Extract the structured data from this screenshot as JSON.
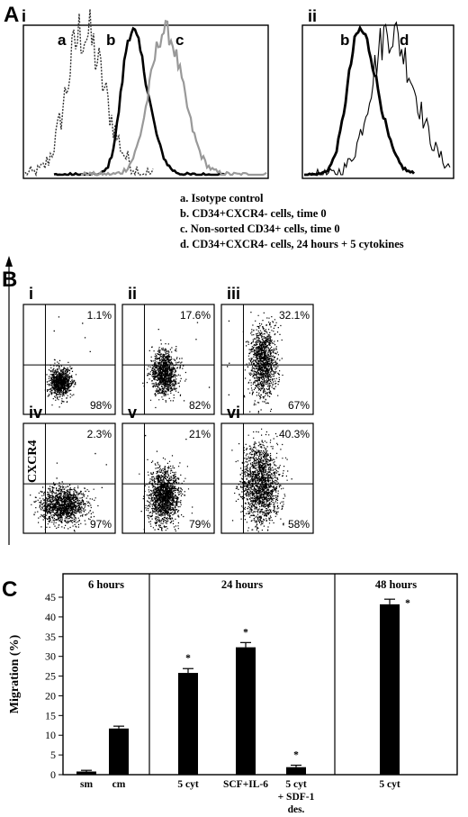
{
  "chart_data": [
    {
      "type": "histogram",
      "panel": "A",
      "subpanel": "i",
      "series": [
        {
          "name": "a",
          "style": "dotted",
          "color": "#333333"
        },
        {
          "name": "b",
          "style": "solid",
          "color": "#000000"
        },
        {
          "name": "c",
          "style": "solid",
          "color": "#999999"
        }
      ]
    },
    {
      "type": "histogram",
      "panel": "A",
      "subpanel": "ii",
      "series": [
        {
          "name": "b",
          "style": "solid-thick",
          "color": "#000000"
        },
        {
          "name": "d",
          "style": "solid-thin",
          "color": "#000000"
        }
      ]
    },
    {
      "type": "legend",
      "entries": [
        "a. Isotype control",
        "b. CD34+CXCR4- cells, time 0",
        "c. Non-sorted CD34+ cells, time 0",
        "d. CD34+CXCR4- cells, 24 hours + 5 cytokines"
      ]
    },
    {
      "type": "scatter",
      "panel": "B",
      "ylabel": "CXCR4",
      "plots": [
        {
          "label": "i",
          "upper": "1.1%",
          "lower": "98%"
        },
        {
          "label": "ii",
          "upper": "17.6%",
          "lower": "82%"
        },
        {
          "label": "iii",
          "upper": "32.1%",
          "lower": "67%"
        },
        {
          "label": "iv",
          "upper": "2.3%",
          "lower": "97%"
        },
        {
          "label": "v",
          "upper": "21%",
          "lower": "79%"
        },
        {
          "label": "vi",
          "upper": "40.3%",
          "lower": "58%"
        }
      ]
    },
    {
      "type": "bar",
      "panel": "C",
      "ylabel": "Migration (%)",
      "ylim": [
        0,
        45
      ],
      "yticks": [
        0,
        5,
        10,
        15,
        20,
        25,
        30,
        35,
        40,
        45
      ],
      "groups": [
        "6 hours",
        "24 hours",
        "48 hours"
      ],
      "categories": [
        "sm",
        "cm",
        "5 cyt",
        "SCF+IL-6",
        "5 cyt\n+ SDF-1\ndes.",
        "5 cyt"
      ],
      "values": [
        0.8,
        11.7,
        25.8,
        32.3,
        1.9,
        43.2
      ],
      "errors": [
        0.3,
        0.6,
        1.1,
        1.2,
        0.5,
        1.3
      ],
      "significant": [
        false,
        false,
        true,
        true,
        true,
        true
      ]
    }
  ],
  "panel_letters": {
    "a": "A",
    "b": "B",
    "c": "C"
  },
  "sub_labels": {
    "a_i": "i",
    "a_ii": "ii"
  },
  "significance_mark": "*"
}
